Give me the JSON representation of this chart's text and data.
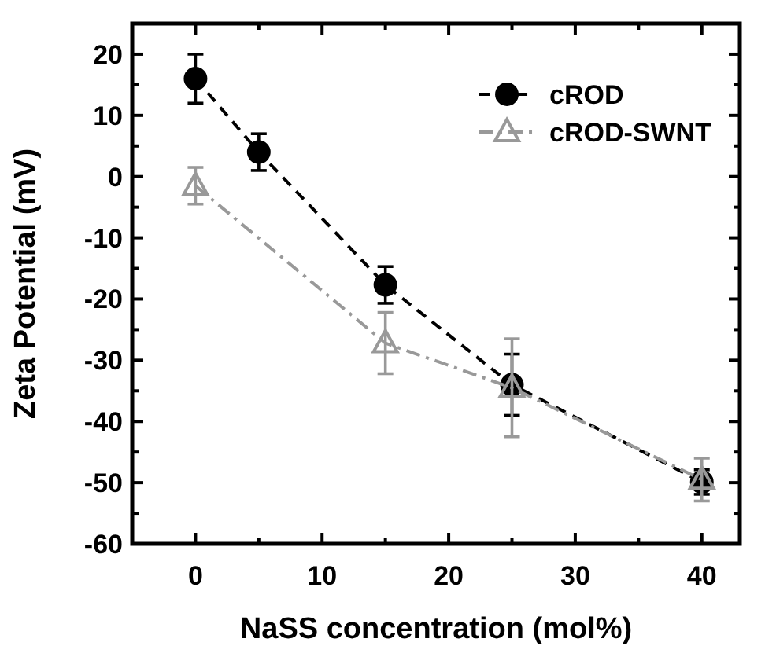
{
  "chart_data": {
    "type": "line",
    "xlabel": "NaSS concentration (mol%)",
    "ylabel": "Zeta Potential (mV)",
    "xlim": [
      -5,
      43
    ],
    "ylim": [
      -60,
      25
    ],
    "xticks": [
      0,
      {
        "value": 5,
        "label": null
      },
      10,
      {
        "value": 15,
        "label": null
      },
      20,
      {
        "value": 25,
        "label": null
      },
      30,
      {
        "value": 35,
        "label": null
      },
      40
    ],
    "yticks": [
      -60,
      {
        "value": -55,
        "label": null
      },
      -50,
      {
        "value": -45,
        "label": null
      },
      -40,
      {
        "value": -35,
        "label": null
      },
      -30,
      {
        "value": -25,
        "label": null
      },
      -20,
      {
        "value": -15,
        "label": null
      },
      -10,
      {
        "value": -5,
        "label": null
      },
      0,
      {
        "value": 5,
        "label": null
      },
      10,
      {
        "value": 15,
        "label": null
      },
      20
    ],
    "grid": false,
    "legend": "top right",
    "line_style": "dashed",
    "series": [
      {
        "name": "cROD",
        "color": "#000000",
        "marker": "circle",
        "x": [
          0,
          5,
          15,
          25,
          40
        ],
        "values": [
          16,
          4,
          -17.7,
          -34,
          -49.9
        ],
        "errors": [
          4,
          3,
          3,
          5,
          2
        ]
      },
      {
        "name": "cROD-SWNT",
        "color": "#999999",
        "marker": "triangle",
        "x": [
          0,
          15,
          25,
          40
        ],
        "values": [
          -1.5,
          -27.2,
          -34.5,
          -49.5
        ],
        "errors": [
          3,
          5,
          8,
          3.5
        ]
      }
    ]
  }
}
